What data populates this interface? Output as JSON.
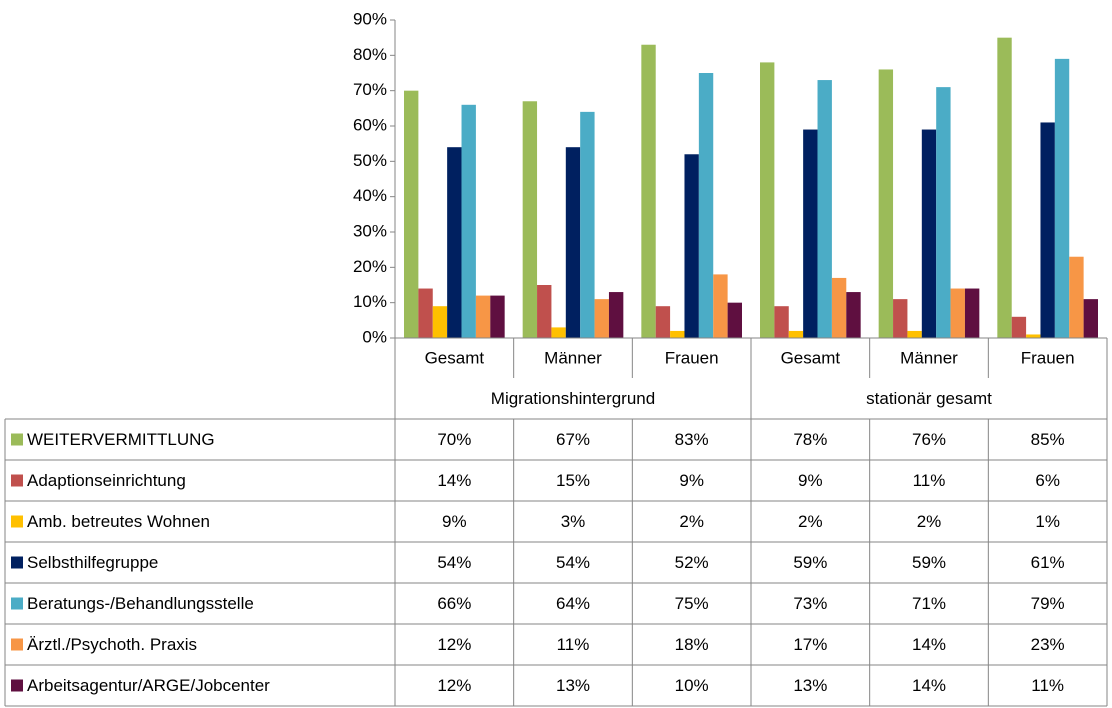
{
  "chart_data": {
    "type": "bar",
    "groups": [
      {
        "name": "Migrationshintergrund",
        "categories": [
          "Gesamt",
          "Männer",
          "Frauen"
        ]
      },
      {
        "name": "stationär gesamt",
        "categories": [
          "Gesamt",
          "Männer",
          "Frauen"
        ]
      }
    ],
    "series": [
      {
        "name": "WEITERVERMITTLUNG",
        "color": "#9bbb59",
        "values": [
          70,
          67,
          83,
          78,
          76,
          85
        ],
        "value_labels": [
          "70%",
          "67%",
          "83%",
          "78%",
          "76%",
          "85%"
        ]
      },
      {
        "name": "Adaptionseinrichtung",
        "color": "#c0504d",
        "values": [
          14,
          15,
          9,
          9,
          11,
          6
        ],
        "value_labels": [
          "14%",
          "15%",
          "9%",
          "9%",
          "11%",
          "6%"
        ]
      },
      {
        "name": "Amb. betreutes Wohnen",
        "color": "#ffc000",
        "values": [
          9,
          3,
          2,
          2,
          2,
          1
        ],
        "value_labels": [
          "9%",
          "3%",
          "2%",
          "2%",
          "2%",
          "1%"
        ]
      },
      {
        "name": "Selbsthilfegruppe",
        "color": "#002060",
        "values": [
          54,
          54,
          52,
          59,
          59,
          61
        ],
        "value_labels": [
          "54%",
          "54%",
          "52%",
          "59%",
          "59%",
          "61%"
        ]
      },
      {
        "name": "Beratungs-/Behandlungsstelle",
        "color": "#4bacc6",
        "values": [
          66,
          64,
          75,
          73,
          71,
          79
        ],
        "value_labels": [
          "66%",
          "64%",
          "75%",
          "73%",
          "71%",
          "79%"
        ]
      },
      {
        "name": "Ärztl./Psychoth. Praxis",
        "color": "#f79646",
        "values": [
          12,
          11,
          18,
          17,
          14,
          23
        ],
        "value_labels": [
          "12%",
          "11%",
          "18%",
          "17%",
          "14%",
          "23%"
        ]
      },
      {
        "name": "Arbeitsagentur/ARGE/Jobcenter",
        "color": "#5f0f40",
        "values": [
          12,
          13,
          10,
          13,
          14,
          11
        ],
        "value_labels": [
          "12%",
          "13%",
          "10%",
          "13%",
          "14%",
          "11%"
        ]
      }
    ],
    "ylim": [
      0,
      90
    ],
    "yticks": [
      {
        "value": 0,
        "label": "0%"
      },
      {
        "value": 10,
        "label": "10%"
      },
      {
        "value": 20,
        "label": "20%"
      },
      {
        "value": 30,
        "label": "30%"
      },
      {
        "value": 40,
        "label": "40%"
      },
      {
        "value": 50,
        "label": "50%"
      },
      {
        "value": 60,
        "label": "60%"
      },
      {
        "value": 70,
        "label": "70%"
      },
      {
        "value": 80,
        "label": "80%"
      },
      {
        "value": 90,
        "label": "90%"
      }
    ],
    "grid": false
  }
}
